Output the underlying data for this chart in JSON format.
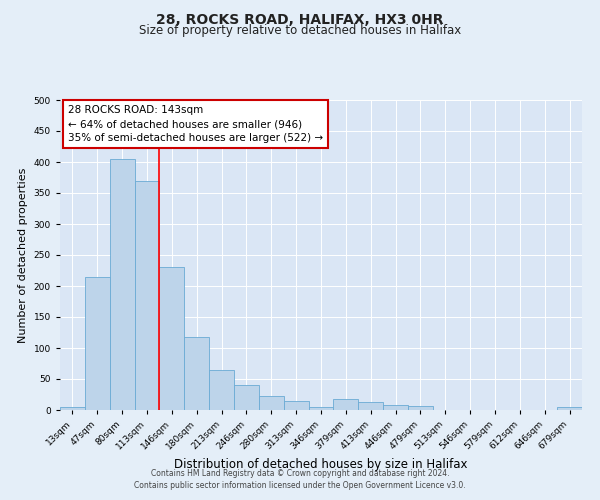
{
  "title": "28, ROCKS ROAD, HALIFAX, HX3 0HR",
  "subtitle": "Size of property relative to detached houses in Halifax",
  "xlabel": "Distribution of detached houses by size in Halifax",
  "ylabel": "Number of detached properties",
  "bar_labels": [
    "13sqm",
    "47sqm",
    "80sqm",
    "113sqm",
    "146sqm",
    "180sqm",
    "213sqm",
    "246sqm",
    "280sqm",
    "313sqm",
    "346sqm",
    "379sqm",
    "413sqm",
    "446sqm",
    "479sqm",
    "513sqm",
    "546sqm",
    "579sqm",
    "612sqm",
    "646sqm",
    "679sqm"
  ],
  "bar_values": [
    5,
    215,
    405,
    370,
    230,
    118,
    65,
    40,
    22,
    15,
    5,
    18,
    13,
    8,
    6,
    0,
    0,
    0,
    0,
    0,
    5
  ],
  "bar_color": "#bdd4ea",
  "bar_edge_color": "#6aaad4",
  "red_line_x": 3.5,
  "ylim": [
    0,
    500
  ],
  "yticks": [
    0,
    50,
    100,
    150,
    200,
    250,
    300,
    350,
    400,
    450,
    500
  ],
  "annotation_title": "28 ROCKS ROAD: 143sqm",
  "annotation_line1": "← 64% of detached houses are smaller (946)",
  "annotation_line2": "35% of semi-detached houses are larger (522) →",
  "annotation_box_facecolor": "#ffffff",
  "annotation_box_edgecolor": "#cc0000",
  "footer_line1": "Contains HM Land Registry data © Crown copyright and database right 2024.",
  "footer_line2": "Contains public sector information licensed under the Open Government Licence v3.0.",
  "bg_color": "#e4eef8",
  "plot_bg_color": "#dae6f5",
  "grid_color": "#ffffff",
  "title_fontsize": 10,
  "subtitle_fontsize": 8.5,
  "xlabel_fontsize": 8.5,
  "ylabel_fontsize": 8,
  "tick_fontsize": 6.5,
  "annotation_fontsize": 7.5,
  "footer_fontsize": 5.5
}
